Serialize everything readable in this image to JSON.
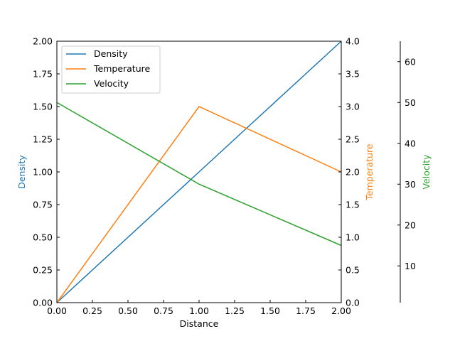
{
  "chart_data": {
    "type": "line",
    "title": "",
    "xlabel": "Distance",
    "xlim": [
      0,
      2
    ],
    "xticks": [
      "0.00",
      "0.25",
      "0.50",
      "0.75",
      "1.00",
      "1.25",
      "1.50",
      "1.75",
      "2.00"
    ],
    "grid": false,
    "legend_position": "top-left",
    "axes": [
      {
        "label": "Density",
        "side": "left",
        "ylim": [
          0,
          2
        ],
        "color": "#1f77b4",
        "ticks": [
          "0.00",
          "0.25",
          "0.50",
          "0.75",
          "1.00",
          "1.25",
          "1.50",
          "1.75",
          "2.00"
        ]
      },
      {
        "label": "Temperature",
        "side": "right",
        "ylim": [
          0,
          4
        ],
        "color": "#ff7f0e",
        "ticks": [
          "0.0",
          "0.5",
          "1.0",
          "1.5",
          "2.0",
          "2.5",
          "3.0",
          "3.5",
          "4.0"
        ]
      },
      {
        "label": "Velocity",
        "side": "right-offset",
        "ylim": [
          1,
          65
        ],
        "color": "#2ca02c",
        "ticks": [
          "10",
          "20",
          "30",
          "40",
          "50",
          "60"
        ]
      }
    ],
    "series": [
      {
        "name": "Density",
        "axis": 0,
        "color": "#1f77b4",
        "x": [
          0,
          1,
          2
        ],
        "y": [
          0,
          1,
          2
        ]
      },
      {
        "name": "Temperature",
        "axis": 1,
        "color": "#ff7f0e",
        "x": [
          0,
          1,
          2
        ],
        "y": [
          0,
          3,
          2
        ]
      },
      {
        "name": "Velocity",
        "axis": 2,
        "color": "#2ca02c",
        "x": [
          0,
          1,
          2
        ],
        "y": [
          50,
          30,
          15
        ]
      }
    ]
  }
}
